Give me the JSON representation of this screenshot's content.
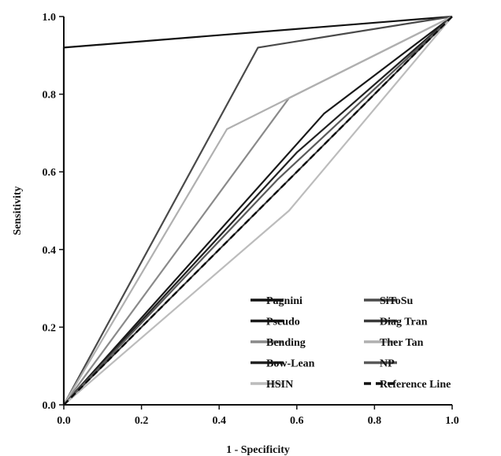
{
  "chart_data": {
    "type": "line",
    "xlabel": "1 - Specificity",
    "ylabel": "Sensitivity",
    "xlim": [
      0,
      1
    ],
    "ylim": [
      0,
      1
    ],
    "xticks": [
      "0.0",
      "0.2",
      "0.4",
      "0.6",
      "0.8",
      "1.0"
    ],
    "yticks": [
      "0.0",
      "0.2",
      "0.4",
      "0.6",
      "0.8",
      "1.0"
    ],
    "grid": false,
    "legend_placement": "bottom-right",
    "legend_columns": 2,
    "series": [
      {
        "name": "Pagnini",
        "color": "#111111",
        "dash": "solid",
        "x": [
          0,
          0,
          1
        ],
        "y": [
          0,
          0.92,
          1
        ]
      },
      {
        "name": "SiToSu",
        "color": "#4a4a4a",
        "dash": "solid",
        "x": [
          0,
          0.5,
          1
        ],
        "y": [
          0,
          0.92,
          1
        ]
      },
      {
        "name": "Pseudo",
        "color": "#1a1a1a",
        "dash": "solid",
        "x": [
          0,
          0.67,
          1
        ],
        "y": [
          0,
          0.75,
          1
        ]
      },
      {
        "name": "Diag Tran",
        "color": "#3a3a3a",
        "dash": "solid",
        "x": [
          0,
          0.5,
          1
        ],
        "y": [
          0,
          0.5,
          1
        ]
      },
      {
        "name": "Bending",
        "color": "#8a8a8a",
        "dash": "solid",
        "x": [
          0,
          0.58,
          1
        ],
        "y": [
          0,
          0.79,
          1
        ]
      },
      {
        "name": "Ther Tan",
        "color": "#b0b0b0",
        "dash": "solid",
        "x": [
          0,
          0.42,
          1
        ],
        "y": [
          0,
          0.71,
          1
        ]
      },
      {
        "name": "Bow-Lean",
        "color": "#222222",
        "dash": "solid",
        "x": [
          0,
          0.6,
          1
        ],
        "y": [
          0,
          0.65,
          1
        ]
      },
      {
        "name": "NP",
        "color": "#5a5a5a",
        "dash": "solid",
        "x": [
          0,
          0.55,
          1
        ],
        "y": [
          0,
          0.58,
          1
        ]
      },
      {
        "name": "HSIN",
        "color": "#bcbcbc",
        "dash": "solid",
        "x": [
          0,
          0.58,
          1
        ],
        "y": [
          0,
          0.5,
          1
        ]
      },
      {
        "name": "Reference Line",
        "color": "#111111",
        "dash": "dashed",
        "x": [
          0,
          1
        ],
        "y": [
          0,
          1
        ]
      }
    ]
  }
}
